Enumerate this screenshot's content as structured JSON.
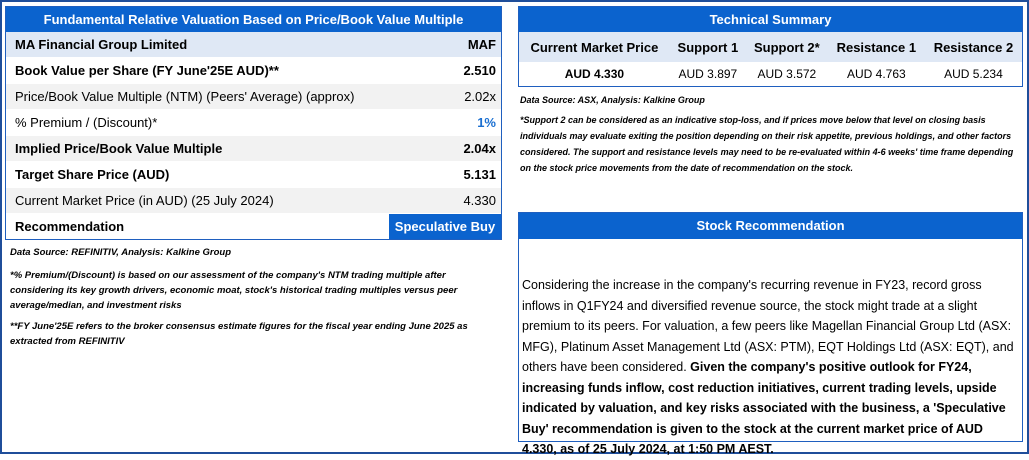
{
  "valuation": {
    "title": "Fundamental Relative Valuation Based on Price/Book Value Multiple",
    "header": {
      "label": "MA Financial Group Limited",
      "value": "MAF"
    },
    "rows": [
      {
        "label": "Book Value per Share (FY June'25E AUD)**",
        "value": "2.510"
      },
      {
        "label": "Price/Book Value Multiple (NTM)  (Peers' Average) (approx)",
        "value": "2.02x"
      },
      {
        "label": "% Premium / (Discount)*",
        "value": "1%"
      },
      {
        "label": "Implied Price/Book Value Multiple",
        "value": "2.04x"
      },
      {
        "label": "Target Share Price (AUD)",
        "value": "5.131"
      },
      {
        "label": "Current Market Price (in AUD) (25 July 2024)",
        "value": "4.330"
      }
    ],
    "recommendation": {
      "label": "Recommendation",
      "value": "Speculative Buy"
    },
    "source": "Data Source: REFINITIV, Analysis: Kalkine Group",
    "note1": "*% Premium/(Discount) is based on our assessment of the company's NTM trading multiple after considering its key growth drivers, economic moat, stock's historical trading multiples versus peer average/median, and investment risks",
    "note2": " **FY June'25E refers to the broker consensus estimate figures for the fiscal year ending June 2025  as extracted from REFINITIV"
  },
  "technical": {
    "title": "Technical Summary",
    "headers": [
      "Current Market Price",
      "Support 1",
      "Support 2*",
      "Resistance 1",
      "Resistance 2"
    ],
    "values": [
      "AUD 4.330",
      "AUD 3.897",
      "AUD 3.572",
      "AUD 4.763",
      "AUD 5.234"
    ],
    "source": "Data Source: ASX, Analysis: Kalkine Group",
    "note": "*Support 2 can be considered as an indicative stop-loss, and if prices move below that level on closing basis individuals may evaluate exiting the position depending on their risk appetite, previous holdings, and other factors considered. The support and resistance levels may need to be re-evaluated within 4-6 weeks' time frame depending on the stock price movements from the date of recommendation on the stock."
  },
  "stock": {
    "title": "Stock Recommendation",
    "text_plain": "Considering the increase in the company's recurring revenue in FY23, record gross inflows in Q1FY24 and diversified revenue source, the stock might trade at a slight premium to its peers. For valuation, a few peers like Magellan Financial Group Ltd (ASX: MFG), Platinum Asset Management Ltd (ASX: PTM), EQT Holdings Ltd (ASX: EQT), and others have been considered. ",
    "text_bold": "Given the company's positive outlook for FY24, increasing funds inflow, cost reduction initiatives, current trading levels, upside indicated by valuation, and key risks associated with the business, a 'Speculative Buy' recommendation is given to the stock at the current market price of AUD 4.330, as of 25 July 2024, at 1:50 PM AEST."
  }
}
